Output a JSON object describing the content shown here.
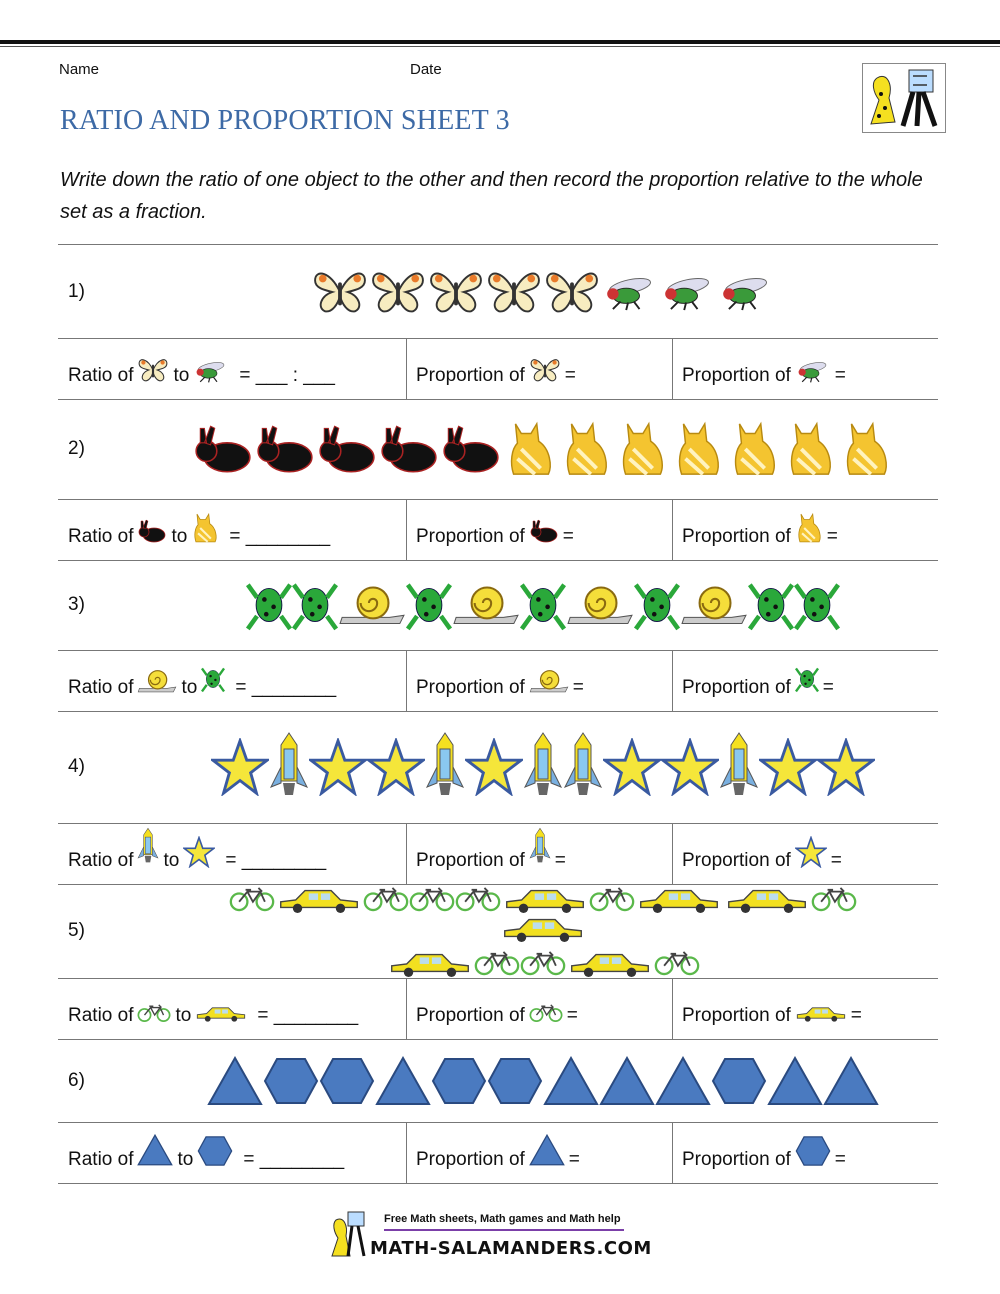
{
  "header": {
    "name_label": "Name",
    "date_label": "Date",
    "title": "RATIO AND PROPORTION SHEET 3",
    "instructions": "Write down the ratio of one object to the other and then record the proportion relative to the whole set as a fraction."
  },
  "colors": {
    "title": "#3d6aa6",
    "star": "#f5e63a",
    "shape": "#4a7ac0",
    "bike": "#5ab84a",
    "car": "#f2e020",
    "rabbit": "#111111",
    "cat": "#f4c430",
    "frog": "#2aa83a"
  },
  "questions": [
    {
      "number": "1)",
      "sequence": [
        "butterfly",
        "butterfly",
        "butterfly",
        "butterfly",
        "butterfly",
        "fly",
        "fly",
        "fly"
      ],
      "a": "butterfly",
      "b": "fly",
      "ratio_blank": "= ___ : ___"
    },
    {
      "number": "2)",
      "sequence": [
        "rabbit",
        "rabbit",
        "rabbit",
        "rabbit",
        "rabbit",
        "cat",
        "cat",
        "cat",
        "cat",
        "cat",
        "cat",
        "cat"
      ],
      "a": "rabbit",
      "b": "cat",
      "ratio_blank": "= ________"
    },
    {
      "number": "3)",
      "sequence": [
        "frog",
        "frog",
        "snail",
        "frog",
        "snail",
        "frog",
        "snail",
        "frog",
        "snail",
        "frog",
        "frog"
      ],
      "a": "snail",
      "b": "frog",
      "ratio_blank": "= ________"
    },
    {
      "number": "4)",
      "sequence": [
        "star",
        "rocket",
        "star",
        "star",
        "rocket",
        "star",
        "rocket",
        "rocket",
        "star",
        "star",
        "rocket",
        "star",
        "star"
      ],
      "a": "rocket",
      "b": "star",
      "ratio_blank": "= ________"
    },
    {
      "number": "5)",
      "sequence": [
        "bike",
        "car",
        "bike",
        "bike",
        "bike",
        "car",
        "bike",
        "car",
        "car",
        "bike",
        "car",
        "car",
        "bike",
        "bike",
        "car",
        "bike"
      ],
      "a": "bike",
      "b": "car",
      "ratio_blank": "= ________"
    },
    {
      "number": "6)",
      "sequence": [
        "triangle",
        "hexagon",
        "hexagon",
        "triangle",
        "hexagon",
        "hexagon",
        "triangle",
        "triangle",
        "triangle",
        "hexagon",
        "triangle",
        "triangle"
      ],
      "a": "triangle",
      "b": "hexagon",
      "ratio_blank": "= ________"
    }
  ],
  "answer_labels": {
    "ratio_of": "Ratio of",
    "to": "to",
    "proportion_of": "Proportion of",
    "equals": "="
  },
  "footer": {
    "tagline": "Free Math sheets, Math games and Math help",
    "site": "MATH-SALAMANDERS.COM"
  }
}
